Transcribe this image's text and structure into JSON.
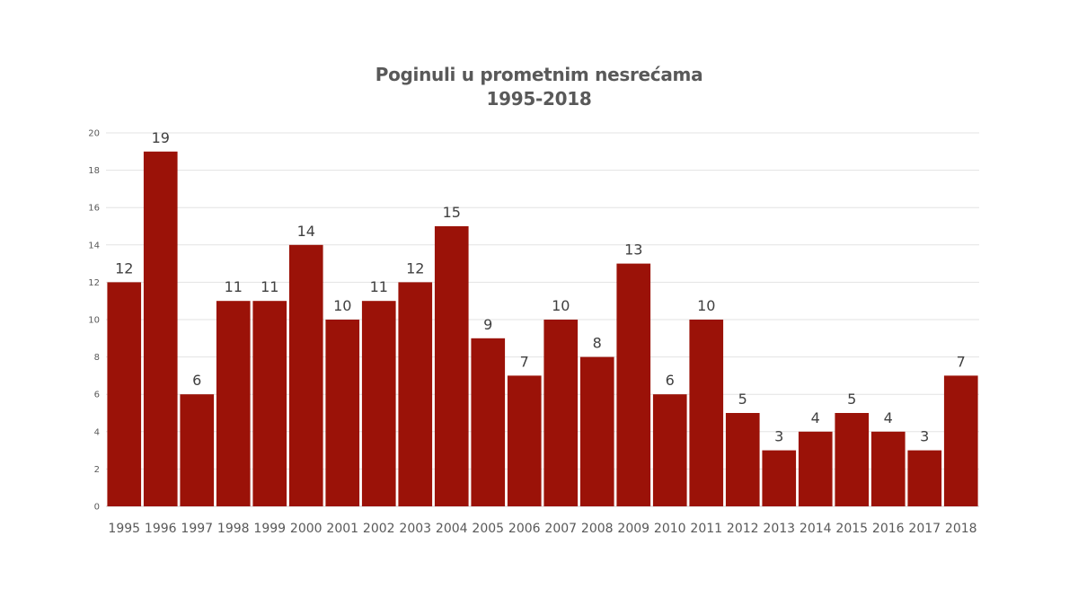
{
  "chart_data": {
    "type": "bar",
    "title": "Poginuli u prometnim nesrećama",
    "subtitle": "1995-2018",
    "xlabel": "",
    "ylabel": "",
    "ylim": [
      0,
      20
    ],
    "yticks": [
      0,
      2,
      4,
      6,
      8,
      10,
      12,
      14,
      16,
      18,
      20
    ],
    "grid": true,
    "legend": "none",
    "bar_color": "#9b1208",
    "categories": [
      "1995",
      "1996",
      "1997",
      "1998",
      "1999",
      "2000",
      "2001",
      "2002",
      "2003",
      "2004",
      "2005",
      "2006",
      "2007",
      "2008",
      "2009",
      "2010",
      "2011",
      "2012",
      "2013",
      "2014",
      "2015",
      "2016",
      "2017",
      "2018"
    ],
    "values": [
      12,
      19,
      6,
      11,
      11,
      14,
      10,
      11,
      12,
      15,
      9,
      7,
      10,
      8,
      13,
      6,
      10,
      5,
      3,
      4,
      5,
      4,
      3,
      7
    ]
  }
}
